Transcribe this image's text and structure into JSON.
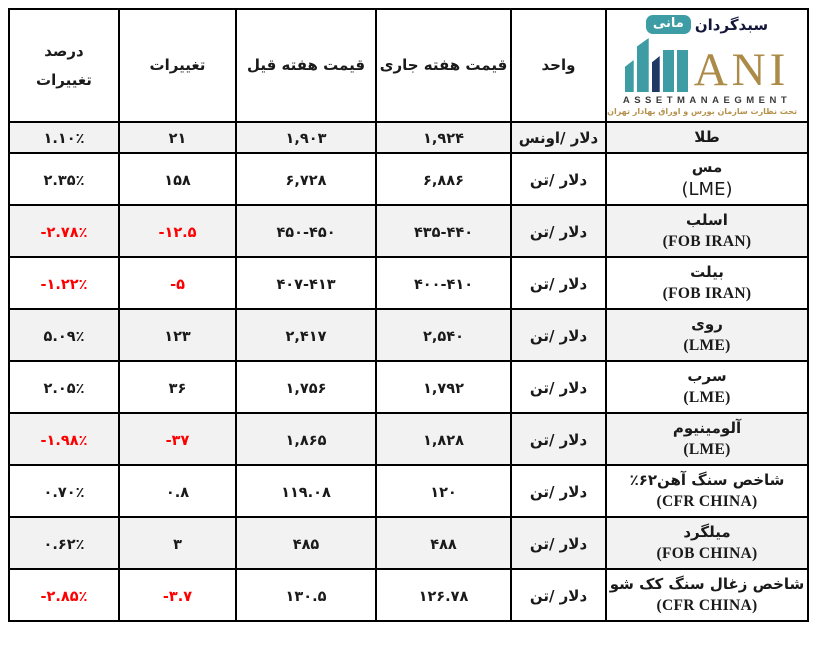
{
  "logo": {
    "brand_fa_right": "سبدگردان",
    "brand_fa_left": "مانی",
    "brand_en": "ANI",
    "subtitle_en": "ASSETMANAEGMENT",
    "subtitle_fa": "تحت نظارت سازمان بورس و اوراق بهادار تهران",
    "colors": {
      "teal": "#3d9ca4",
      "gold": "#ab8b47",
      "navy": "#203864"
    }
  },
  "table": {
    "headers": {
      "unit": "واحد",
      "current_week_price": "قیمت هفته جاری",
      "previous_week_price": "قیمت هفته قیل",
      "changes": "تغییرات",
      "percent_changes": "درصد\nتغییرات"
    },
    "status_colors": {
      "negative": "#fe0000",
      "normal": "#1a1a1a",
      "shaded_row_bg": "#f2f2f2"
    },
    "rows": [
      {
        "name_fa": "طلا",
        "name_en": "",
        "unit": "دلار /اونس",
        "current": "۱,۹۲۴",
        "previous": "۱,۹۰۳",
        "change": "۲۱",
        "percent": "۱.۱۰٪",
        "negative": false,
        "shaded": true,
        "en_sans": false
      },
      {
        "name_fa": "مس",
        "name_en": "(LME)",
        "unit": "دلار /تن",
        "current": "۶,۸۸۶",
        "previous": "۶,۷۲۸",
        "change": "۱۵۸",
        "percent": "۲.۳۵٪",
        "negative": false,
        "shaded": false,
        "en_sans": true
      },
      {
        "name_fa": "اسلب",
        "name_en": "(FOB IRAN)",
        "unit": "دلار /تن",
        "current": "۴۳۵-۴۴۰",
        "previous": "۴۵۰-۴۵۰",
        "change": "-۱۲.۵",
        "percent": "-۲.۷۸٪",
        "negative": true,
        "shaded": true,
        "en_sans": false
      },
      {
        "name_fa": "بیلت",
        "name_en": "(FOB IRAN)",
        "unit": "دلار /تن",
        "current": "۴۰۰-۴۱۰",
        "previous": "۴۰۷-۴۱۳",
        "change": "-۵",
        "percent": "-۱.۲۲٪",
        "negative": true,
        "shaded": false,
        "en_sans": false
      },
      {
        "name_fa": "روی",
        "name_en": "(LME)",
        "unit": "دلار /تن",
        "current": "۲,۵۴۰",
        "previous": "۲,۴۱۷",
        "change": "۱۲۳",
        "percent": "۵.۰۹٪",
        "negative": false,
        "shaded": true,
        "en_sans": false
      },
      {
        "name_fa": "سرب",
        "name_en": "(LME)",
        "unit": "دلار /تن",
        "current": "۱,۷۹۲",
        "previous": "۱,۷۵۶",
        "change": "۳۶",
        "percent": "۲.۰۵٪",
        "negative": false,
        "shaded": false,
        "en_sans": false
      },
      {
        "name_fa": "آلومینیوم",
        "name_en": "(LME)",
        "unit": "دلار /تن",
        "current": "۱,۸۲۸",
        "previous": "۱,۸۶۵",
        "change": "-۳۷",
        "percent": "-۱.۹۸٪",
        "negative": true,
        "shaded": true,
        "en_sans": false
      },
      {
        "name_fa": "شاخص سنگ آهن۶۲‏٪",
        "name_en": "(CFR CHINA)",
        "unit": "دلار /تن",
        "current": "۱۲۰",
        "previous": "۱۱۹.۰۸",
        "change": "۰.۸",
        "percent": "۰.۷۰٪",
        "negative": false,
        "shaded": false,
        "en_sans": false
      },
      {
        "name_fa": "میلگرد",
        "name_en": "(FOB CHINA)",
        "unit": "دلار /تن",
        "current": "۴۸۸",
        "previous": "۴۸۵",
        "change": "۳",
        "percent": "۰.۶۲٪",
        "negative": false,
        "shaded": true,
        "en_sans": false
      },
      {
        "name_fa": "شاخص زغال سنگ کک شو",
        "name_en": "(CFR CHINA)",
        "unit": "دلار /تن",
        "current": "۱۲۶.۷۸",
        "previous": "۱۳۰.۵",
        "change": "-۳.۷",
        "percent": "-۲.۸۵٪",
        "negative": true,
        "shaded": false,
        "en_sans": false
      }
    ]
  }
}
